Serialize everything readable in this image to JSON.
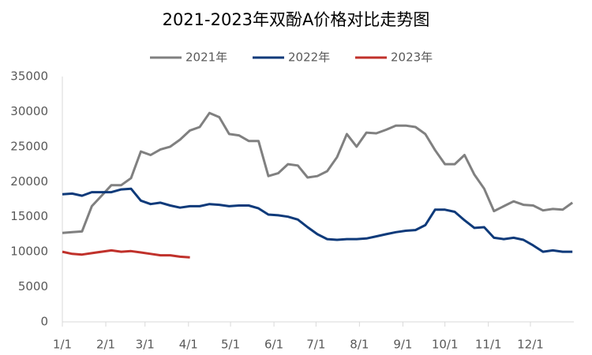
{
  "chart_data": {
    "type": "line",
    "title": "2021-2023年双酚A价格对比走势图",
    "x": [
      1,
      8,
      15,
      22,
      29,
      36,
      43,
      50,
      57,
      64,
      71,
      78,
      85,
      92,
      99,
      106,
      113,
      120,
      127,
      134,
      141,
      148,
      155,
      162,
      169,
      176,
      183,
      190,
      197,
      204,
      211,
      218,
      225,
      232,
      239,
      246,
      253,
      260,
      267,
      274,
      281,
      288,
      295,
      302,
      309,
      316,
      323,
      330,
      337,
      344,
      351,
      358,
      365
    ],
    "xlim": [
      1,
      366
    ],
    "xticks": [
      {
        "value": 1,
        "label": "1/1"
      },
      {
        "value": 32,
        "label": "2/1"
      },
      {
        "value": 60,
        "label": "3/1"
      },
      {
        "value": 91,
        "label": "4/1"
      },
      {
        "value": 121,
        "label": "5/1"
      },
      {
        "value": 152,
        "label": "6/1"
      },
      {
        "value": 182,
        "label": "7/1"
      },
      {
        "value": 213,
        "label": "8/1"
      },
      {
        "value": 244,
        "label": "9/1"
      },
      {
        "value": 274,
        "label": "10/1"
      },
      {
        "value": 305,
        "label": "11/1"
      },
      {
        "value": 335,
        "label": "12/1"
      }
    ],
    "ylim": [
      0,
      35000
    ],
    "yticks": [
      0,
      5000,
      10000,
      15000,
      20000,
      25000,
      30000,
      35000
    ],
    "grid": false,
    "legend": "top",
    "series": [
      {
        "name": "2021年",
        "color": "#808080",
        "values": [
          12700,
          12800,
          12900,
          16500,
          18000,
          19500,
          19500,
          20500,
          24300,
          23800,
          24600,
          25000,
          26000,
          27300,
          27800,
          29800,
          29200,
          26800,
          26600,
          25800,
          25800,
          20800,
          21200,
          22500,
          22300,
          20600,
          20800,
          21500,
          23500,
          26800,
          25000,
          27000,
          26900,
          27400,
          28000,
          28000,
          27800,
          26800,
          24500,
          22500,
          22500,
          23800,
          21000,
          19000,
          15800,
          16500,
          17200,
          16700,
          16600,
          15900,
          16100,
          16000,
          17000
        ]
      },
      {
        "name": "2022年",
        "color": "#0e3a7a",
        "values": [
          18200,
          18300,
          18000,
          18500,
          18500,
          18500,
          18900,
          19000,
          17300,
          16800,
          17000,
          16600,
          16300,
          16500,
          16500,
          16800,
          16700,
          16500,
          16600,
          16600,
          16200,
          15300,
          15200,
          15000,
          14600,
          13500,
          12500,
          11800,
          11700,
          11800,
          11800,
          11900,
          12200,
          12500,
          12800,
          13000,
          13100,
          13800,
          16000,
          16000,
          15700,
          14500,
          13400,
          13500,
          12000,
          11800,
          12000,
          11700,
          10900,
          10000,
          10200,
          10000,
          10000
        ]
      },
      {
        "name": "2023年",
        "color": "#c0312b",
        "values": [
          10000,
          9700,
          9600,
          9800,
          10000,
          10200,
          10000,
          10100,
          9900,
          9700,
          9500,
          9500,
          9300,
          9200,
          null,
          null,
          null,
          null,
          null,
          null,
          null,
          null,
          null,
          null,
          null,
          null,
          null,
          null,
          null,
          null,
          null,
          null,
          null,
          null,
          null,
          null,
          null,
          null,
          null,
          null,
          null,
          null,
          null,
          null,
          null,
          null,
          null,
          null,
          null,
          null,
          null,
          null,
          null
        ]
      }
    ]
  }
}
